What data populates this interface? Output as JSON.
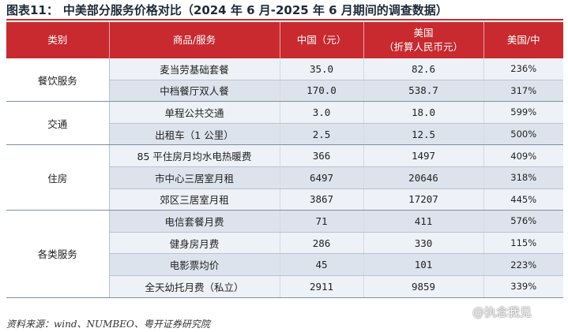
{
  "title": {
    "prefix": "图表11：",
    "text": "中美部分服务价格对比（2024 年 6 月-2025 年 6 月期间的调查数据）"
  },
  "table": {
    "headers": {
      "category": "类别",
      "item": "商品/服务",
      "china": "中国（元）",
      "us_line1": "美国",
      "us_line2": "（折算人民币元）",
      "ratio": "美国/中"
    },
    "groups": [
      {
        "category": "餐饮服务",
        "rows": [
          {
            "item": "麦当劳基础套餐",
            "china": "35.0",
            "us": "82.6",
            "ratio": "236%"
          },
          {
            "item": "中档餐厅双人餐",
            "china": "170.0",
            "us": "538.7",
            "ratio": "317%"
          }
        ]
      },
      {
        "category": "交通",
        "rows": [
          {
            "item": "单程公共交通",
            "china": "3.0",
            "us": "18.0",
            "ratio": "599%"
          },
          {
            "item": "出租车（1 公里）",
            "china": "2.5",
            "us": "12.5",
            "ratio": "500%"
          }
        ]
      },
      {
        "category": "住房",
        "rows": [
          {
            "item": "85 平住房月均水电热暖费",
            "china": "366",
            "us": "1497",
            "ratio": "409%"
          },
          {
            "item": "市中心三居室月租",
            "china": "6497",
            "us": "20646",
            "ratio": "318%"
          },
          {
            "item": "郊区三居室月租",
            "china": "3867",
            "us": "17207",
            "ratio": "445%"
          }
        ]
      },
      {
        "category": "各类服务",
        "rows": [
          {
            "item": "电信套餐月费",
            "china": "71",
            "us": "411",
            "ratio": "576%"
          },
          {
            "item": "健身房月费",
            "china": "286",
            "us": "330",
            "ratio": "115%"
          },
          {
            "item": "电影票均价",
            "china": "45",
            "us": "101",
            "ratio": "223%"
          },
          {
            "item": "全天幼托月费（私立）",
            "china": "2911",
            "us": "9859",
            "ratio": "339%"
          }
        ]
      }
    ]
  },
  "source": "资料来源：wind、NUMBEO、粤开证券研究院",
  "watermark": "@执念我见",
  "colors": {
    "header": "#c82a2f",
    "row_a": "#eef1f6",
    "row_b": "#dde3ec"
  }
}
